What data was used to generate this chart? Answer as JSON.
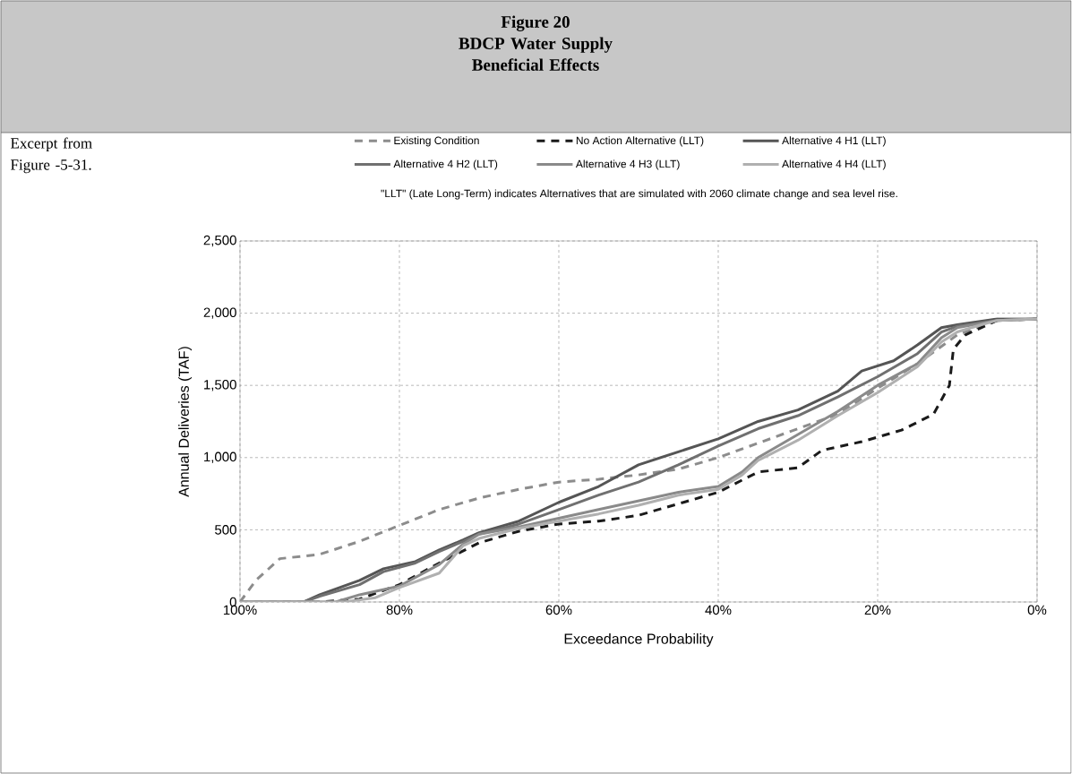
{
  "chart_data": {
    "type": "line",
    "title": "Figure 20",
    "subtitle": "BDCP Water Supply Beneficial Effects",
    "xlabel": "Exceedance Probability",
    "ylabel": "Annual Deliveries (TAF)",
    "annotations": [
      "Excerpt from Figure -5-31.",
      "\"LLT\" (Late Long-Term) indicates Alternatives that are simulated with 2060 climate change and sea level rise."
    ],
    "xlim": [
      100,
      0
    ],
    "ylim": [
      0,
      2500
    ],
    "xticks": [
      {
        "value": 100,
        "label": "100%"
      },
      {
        "value": 80,
        "label": "80%"
      },
      {
        "value": 60,
        "label": "60%"
      },
      {
        "value": 40,
        "label": "40%"
      },
      {
        "value": 20,
        "label": "20%"
      },
      {
        "value": 0,
        "label": "0%"
      }
    ],
    "yticks": [
      {
        "value": 0,
        "label": "0"
      },
      {
        "value": 500,
        "label": "500"
      },
      {
        "value": 1000,
        "label": "1,000"
      },
      {
        "value": 1500,
        "label": "1,500"
      },
      {
        "value": 2000,
        "label": "2,000"
      },
      {
        "value": 2500,
        "label": "2,500"
      }
    ],
    "grid": true,
    "legend": "top",
    "marker": "none",
    "series": [
      {
        "name": "Existing Condition",
        "color": "#8c8c8c",
        "line_style": "dashed",
        "x": [
          100,
          98,
          95,
          90,
          85,
          80,
          75,
          70,
          65,
          60,
          55,
          50,
          45,
          40,
          35,
          30,
          25,
          20,
          15,
          10,
          5,
          0
        ],
        "values": [
          0,
          150,
          300,
          330,
          420,
          530,
          640,
          720,
          780,
          830,
          850,
          880,
          920,
          1000,
          1100,
          1200,
          1300,
          1480,
          1650,
          1850,
          1950,
          1960
        ]
      },
      {
        "name": "No Action Alternative (LLT)",
        "color": "#1a1a1a",
        "line_style": "dashed",
        "x": [
          100,
          90,
          85,
          80,
          75,
          70,
          65,
          60,
          55,
          50,
          45,
          40,
          35,
          30,
          27,
          22,
          17,
          13,
          11,
          10.5,
          9,
          5,
          0
        ],
        "values": [
          0,
          0,
          20,
          120,
          270,
          410,
          490,
          540,
          560,
          600,
          680,
          760,
          900,
          930,
          1050,
          1110,
          1190,
          1300,
          1500,
          1750,
          1850,
          1950,
          1960
        ]
      },
      {
        "name": "Alternative 4 H1 (LLT)",
        "color": "#555555",
        "line_style": "solid",
        "x": [
          100,
          92,
          90,
          85,
          82,
          78,
          75,
          72,
          70,
          65,
          60,
          55,
          50,
          45,
          40,
          35,
          30,
          25,
          22,
          18,
          15,
          12,
          10,
          5,
          0
        ],
        "values": [
          0,
          0,
          50,
          150,
          230,
          280,
          360,
          430,
          480,
          560,
          690,
          800,
          950,
          1040,
          1130,
          1250,
          1330,
          1460,
          1600,
          1670,
          1780,
          1900,
          1920,
          1960,
          1960
        ]
      },
      {
        "name": "Alternative 4 H2 (LLT)",
        "color": "#707070",
        "line_style": "solid",
        "x": [
          100,
          92,
          90,
          85,
          82,
          78,
          75,
          72,
          70,
          65,
          60,
          55,
          50,
          45,
          40,
          35,
          30,
          25,
          20,
          15,
          12,
          10,
          5,
          0
        ],
        "values": [
          0,
          0,
          40,
          120,
          210,
          270,
          350,
          420,
          470,
          540,
          640,
          740,
          830,
          950,
          1080,
          1200,
          1290,
          1420,
          1560,
          1720,
          1870,
          1910,
          1950,
          1960
        ]
      },
      {
        "name": "Alternative 4 H3 (LLT)",
        "color": "#8a8a8a",
        "line_style": "solid",
        "x": [
          100,
          88,
          85,
          80,
          75,
          72,
          70,
          65,
          60,
          55,
          50,
          45,
          40,
          37,
          35,
          30,
          25,
          20,
          15,
          12,
          10,
          5,
          0
        ],
        "values": [
          0,
          0,
          50,
          110,
          260,
          400,
          470,
          520,
          580,
          640,
          700,
          760,
          800,
          900,
          1000,
          1160,
          1320,
          1500,
          1650,
          1830,
          1900,
          1950,
          1960
        ]
      },
      {
        "name": "Alternative 4 H4 (LLT)",
        "color": "#b0b0b0",
        "line_style": "solid",
        "x": [
          100,
          87,
          83,
          80,
          75,
          72,
          70,
          65,
          60,
          55,
          50,
          45,
          40,
          37,
          35,
          30,
          25,
          20,
          15,
          12,
          10,
          7,
          5,
          0
        ],
        "values": [
          0,
          0,
          30,
          100,
          200,
          390,
          440,
          510,
          560,
          610,
          670,
          740,
          780,
          880,
          980,
          1120,
          1290,
          1450,
          1630,
          1800,
          1870,
          1920,
          1950,
          1960
        ]
      }
    ]
  }
}
